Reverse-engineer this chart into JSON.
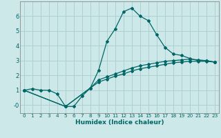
{
  "title": "",
  "xlabel": "Humidex (Indice chaleur)",
  "background_color": "#cce8e8",
  "grid_color": "#aacccc",
  "line_color": "#006666",
  "xlim": [
    -0.5,
    23.5
  ],
  "ylim": [
    -0.55,
    7.0
  ],
  "xticks": [
    0,
    1,
    2,
    3,
    4,
    5,
    6,
    7,
    8,
    9,
    10,
    11,
    12,
    13,
    14,
    15,
    16,
    17,
    18,
    19,
    20,
    21,
    22,
    23
  ],
  "yticks": [
    0,
    1,
    2,
    3,
    4,
    5,
    6
  ],
  "ytick_labels": [
    "-0",
    "1",
    "2",
    "3",
    "4",
    "5",
    "6"
  ],
  "series1_x": [
    0,
    1,
    2,
    3,
    4,
    5,
    6,
    7,
    8,
    9,
    10,
    11,
    12,
    13,
    14,
    15,
    16,
    17,
    18,
    19,
    20,
    21,
    22,
    23
  ],
  "series1_y": [
    1.0,
    1.1,
    1.0,
    1.0,
    0.75,
    -0.1,
    -0.1,
    0.6,
    1.15,
    2.35,
    4.3,
    5.15,
    6.3,
    6.55,
    6.0,
    5.7,
    4.75,
    3.9,
    3.45,
    3.35,
    3.15,
    3.0,
    3.0,
    2.9
  ],
  "series2_x": [
    0,
    5,
    8,
    9,
    10,
    11,
    12,
    13,
    14,
    15,
    16,
    17,
    18,
    19,
    20,
    21,
    22,
    23
  ],
  "series2_y": [
    1.0,
    -0.1,
    1.15,
    1.7,
    1.9,
    2.1,
    2.3,
    2.5,
    2.65,
    2.75,
    2.85,
    2.95,
    3.0,
    3.05,
    3.1,
    3.05,
    3.0,
    2.9
  ],
  "series3_x": [
    0,
    5,
    8,
    9,
    10,
    11,
    12,
    13,
    14,
    15,
    16,
    17,
    18,
    19,
    20,
    21,
    22,
    23
  ],
  "series3_y": [
    1.0,
    -0.1,
    1.15,
    1.55,
    1.75,
    1.95,
    2.1,
    2.3,
    2.45,
    2.55,
    2.65,
    2.75,
    2.85,
    2.9,
    2.95,
    2.95,
    2.95,
    2.9
  ],
  "xtick_fontsize": 5.2,
  "ytick_fontsize": 6.0,
  "xlabel_fontsize": 6.5,
  "marker_size": 2.0,
  "linewidth": 0.9
}
